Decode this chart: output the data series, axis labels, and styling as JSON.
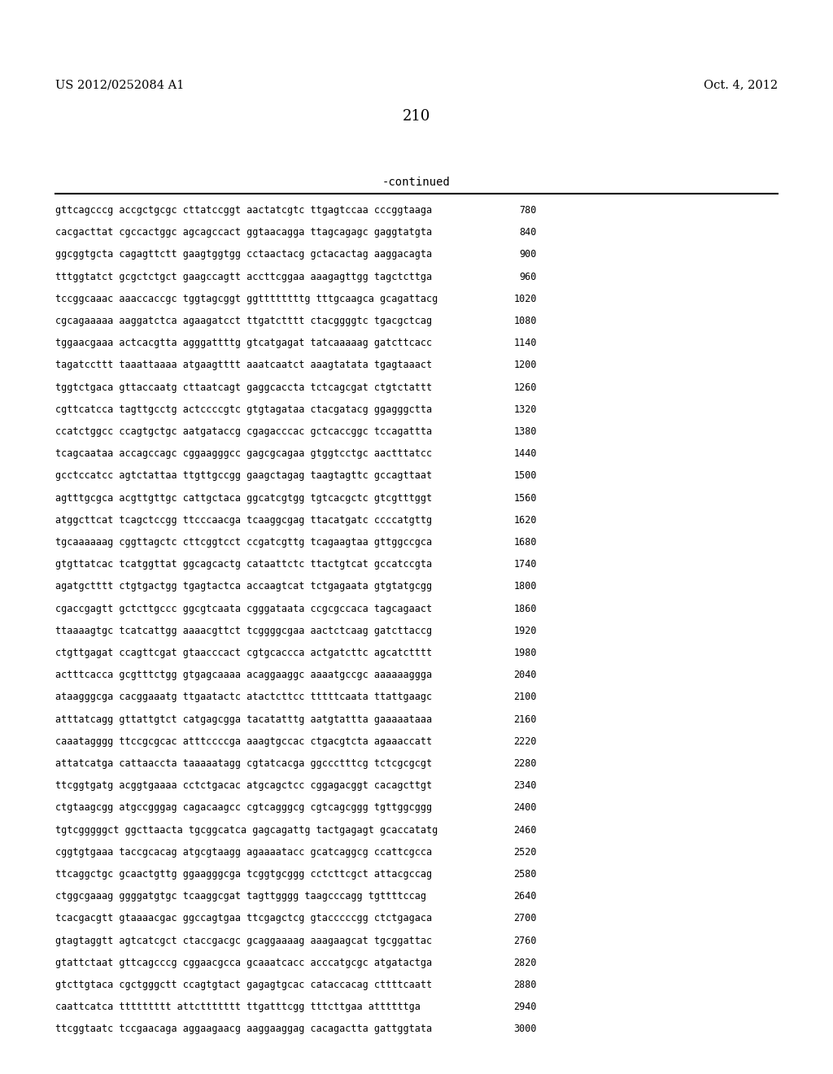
{
  "header_left": "US 2012/0252084 A1",
  "header_right": "Oct. 4, 2012",
  "page_number": "210",
  "continued_label": "-continued",
  "background_color": "#ffffff",
  "text_color": "#000000",
  "sequences": [
    [
      "gttcagcccg accgctgcgc cttatccggt aactatcgtc ttgagtccaa cccggtaaga",
      "780"
    ],
    [
      "cacgacttat cgccactggc agcagccact ggtaacagga ttagcagagc gaggtatgta",
      "840"
    ],
    [
      "ggcggtgcta cagagttctt gaagtggtgg cctaactacg gctacactag aaggacagta",
      "900"
    ],
    [
      "tttggtatct gcgctctgct gaagccagtt accttcggaa aaagagttgg tagctcttga",
      "960"
    ],
    [
      "tccggcaaac aaaccaccgc tggtagcggt ggttttttttg tttgcaagca gcagattacg",
      "1020"
    ],
    [
      "cgcagaaaaa aaggatctca agaagatcct ttgatctttt ctacggggtc tgacgctcag",
      "1080"
    ],
    [
      "tggaacgaaa actcacgtta agggattttg gtcatgagat tatcaaaaag gatcttcacc",
      "1140"
    ],
    [
      "tagatccttt taaattaaaa atgaagtttt aaatcaatct aaagtatata tgagtaaact",
      "1200"
    ],
    [
      "tggtctgaca gttaccaatg cttaatcagt gaggcaccta tctcagcgat ctgtctattt",
      "1260"
    ],
    [
      "cgttcatcca tagttgcctg actccccgtc gtgtagataa ctacgatacg ggagggctta",
      "1320"
    ],
    [
      "ccatctggcc ccagtgctgc aatgataccg cgagacccac gctcaccggc tccagattta",
      "1380"
    ],
    [
      "tcagcaataa accagccagc cggaagggcc gagcgcagaa gtggtcctgc aactttatcc",
      "1440"
    ],
    [
      "gcctccatcc agtctattaa ttgttgccgg gaagctagag taagtagttc gccagttaat",
      "1500"
    ],
    [
      "agtttgcgca acgttgttgc cattgctaca ggcatcgtgg tgtcacgctc gtcgtttggt",
      "1560"
    ],
    [
      "atggcttcat tcagctccgg ttcccaacga tcaaggcgag ttacatgatc ccccatgttg",
      "1620"
    ],
    [
      "tgcaaaaaag cggttagctc cttcggtcct ccgatcgttg tcagaagtaa gttggccgca",
      "1680"
    ],
    [
      "gtgttatcac tcatggttat ggcagcactg cataattctc ttactgtcat gccatccgta",
      "1740"
    ],
    [
      "agatgctttt ctgtgactgg tgagtactca accaagtcat tctgagaata gtgtatgcgg",
      "1800"
    ],
    [
      "cgaccgagtt gctcttgccc ggcgtcaata cgggataata ccgcgccaca tagcagaact",
      "1860"
    ],
    [
      "ttaaaagtgc tcatcattgg aaaacgttct tcggggcgaa aactctcaag gatcttaccg",
      "1920"
    ],
    [
      "ctgttgagat ccagttcgat gtaacccact cgtgcaccca actgatcttc agcatctttt",
      "1980"
    ],
    [
      "actttcacca gcgtttctgg gtgagcaaaa acaggaaggc aaaatgccgc aaaaaaggga",
      "2040"
    ],
    [
      "ataagggcga cacggaaatg ttgaatactc atactcttcc tttttcaata ttattgaagc",
      "2100"
    ],
    [
      "atttatcagg gttattgtct catgagcgga tacatatttg aatgtattta gaaaaataaa",
      "2160"
    ],
    [
      "caaatagggg ttccgcgcac atttccccga aaagtgccac ctgacgtcta agaaaccatt",
      "2220"
    ],
    [
      "attatcatga cattaaccta taaaaatagg cgtatcacga ggccctttcg tctcgcgcgt",
      "2280"
    ],
    [
      "ttcggtgatg acggtgaaaa cctctgacac atgcagctcc cggagacggt cacagcttgt",
      "2340"
    ],
    [
      "ctgtaagcgg atgccgggag cagacaagcc cgtcagggcg cgtcagcggg tgttggcggg",
      "2400"
    ],
    [
      "tgtcgggggct ggcttaacta tgcggcatca gagcagattg tactgagagt gcaccatatg",
      "2460"
    ],
    [
      "cggtgtgaaa taccgcacag atgcgtaagg agaaaatacc gcatcaggcg ccattcgcca",
      "2520"
    ],
    [
      "ttcaggctgc gcaactgttg ggaagggcga tcggtgcggg cctcttcgct attacgccag",
      "2580"
    ],
    [
      "ctggcgaaag ggggatgtgc tcaaggcgat tagttgggg taagcccagg tgttttccag",
      "2640"
    ],
    [
      "tcacgacgtt gtaaaacgac ggccagtgaa ttcgagctcg gtacccccgg ctctgagaca",
      "2700"
    ],
    [
      "gtagtaggtt agtcatcgct ctaccgacgc gcaggaaaag aaagaagcat tgcggattac",
      "2760"
    ],
    [
      "gtattctaat gttcagcccg cggaacgcca gcaaatcacc acccatgcgc atgatactga",
      "2820"
    ],
    [
      "gtcttgtaca cgctgggctt ccagtgtact gagagtgcac cataccacag cttttcaatt",
      "2880"
    ],
    [
      "caattcatca ttttttttt attcttttttt ttgatttcgg tttcttgaa attttttga",
      "2940"
    ],
    [
      "ttcggtaatc tccgaacaga aggaagaacg aaggaaggag cacagactta gattggtata",
      "3000"
    ]
  ]
}
